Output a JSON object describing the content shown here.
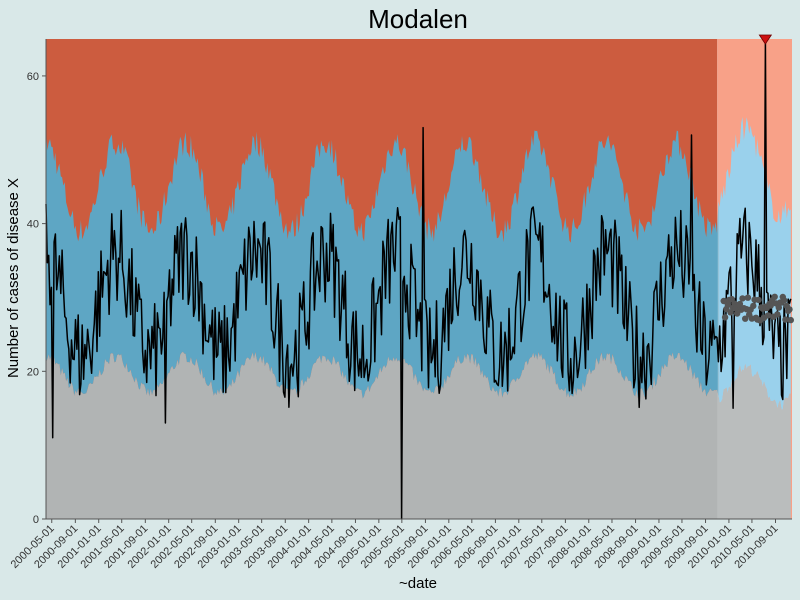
{
  "chart_data": {
    "type": "area",
    "title": "Modalen",
    "xlabel": "~date",
    "ylabel": "Number of cases of disease X",
    "ylim": [
      0,
      65
    ],
    "xlim": [
      "2000-04-01",
      "2010-11-26"
    ],
    "y_ticks": [
      0,
      20,
      40,
      60
    ],
    "x_ticks": [
      "2000-05-01",
      "2000-09-01",
      "2001-01-01",
      "2001-05-01",
      "2001-09-01",
      "2002-01-01",
      "2002-05-01",
      "2002-09-01",
      "2003-01-01",
      "2003-05-01",
      "2003-09-01",
      "2004-01-01",
      "2004-05-01",
      "2004-09-01",
      "2005-01-01",
      "2005-05-01",
      "2005-09-01",
      "2006-01-01",
      "2006-05-01",
      "2006-09-01",
      "2007-01-01",
      "2007-05-01",
      "2007-09-01",
      "2008-01-01",
      "2008-05-01",
      "2008-09-01",
      "2009-01-01",
      "2009-05-01",
      "2009-09-01",
      "2010-01-01",
      "2010-05-01",
      "2010-09-01"
    ],
    "grid": false,
    "background_periods": [
      {
        "start": "2000-04-01",
        "end": "2009-11-01"
      },
      {
        "start": "2009-11-01",
        "end": "2010-11-26"
      }
    ],
    "colors": {
      "background": "#d9e8e8",
      "upper_region": "#cc5c3f",
      "upper_region_recent": "#f89478",
      "normal_band": "#5ea6c4",
      "normal_band_recent": "#8ccbea",
      "lower_region": "#b1b4b4",
      "observed_line": "#000000",
      "forecast_points": "#555555",
      "alert_marker": "#cc1111"
    },
    "band_model": {
      "lower_baseline": 19.5,
      "lower_amplitude": 2.5,
      "upper_baseline": 45,
      "upper_amplitude": 6,
      "peak_month": 3
    },
    "observed_series": {
      "mean_baseline": 29,
      "mean_amplitude": 7,
      "peak_month": 3
    },
    "notable_points": [
      {
        "date": "2000-05-06",
        "value": 11
      },
      {
        "date": "2001-12-15",
        "value": 13
      },
      {
        "date": "2005-04-30",
        "value": 0
      },
      {
        "date": "2005-08-20",
        "value": 53
      },
      {
        "date": "2009-06-20",
        "value": 52
      },
      {
        "date": "2010-01-23",
        "value": 15
      },
      {
        "date": "2010-07-10",
        "value": 65
      }
    ],
    "forecast_points": {
      "start": "2009-12-05",
      "end": "2010-11-20",
      "center": 28.5,
      "spread": 1.6
    },
    "alert": {
      "date": "2010-07-10",
      "value": 65
    }
  }
}
